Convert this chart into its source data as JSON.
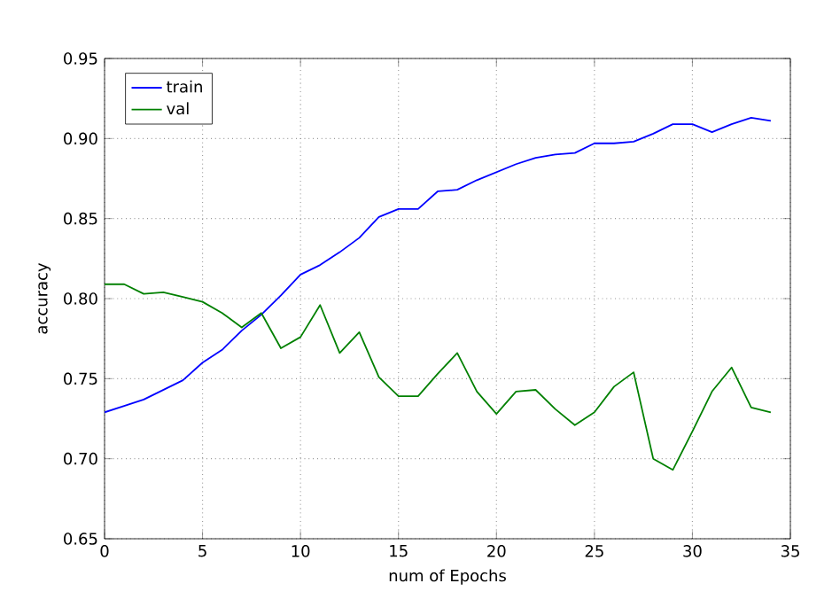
{
  "chart_data": {
    "type": "line",
    "xlabel": "num of Epochs",
    "ylabel": "accuracy",
    "x": [
      0,
      1,
      2,
      3,
      4,
      5,
      6,
      7,
      8,
      9,
      10,
      11,
      12,
      13,
      14,
      15,
      16,
      17,
      18,
      19,
      20,
      21,
      22,
      23,
      24,
      25,
      26,
      27,
      28,
      29,
      30,
      31,
      32,
      33,
      34
    ],
    "series": [
      {
        "name": "train",
        "color": "#0000ff",
        "values": [
          0.729,
          0.733,
          0.737,
          0.743,
          0.749,
          0.76,
          0.768,
          0.78,
          0.79,
          0.802,
          0.815,
          0.821,
          0.829,
          0.838,
          0.851,
          0.856,
          0.856,
          0.867,
          0.868,
          0.874,
          0.879,
          0.884,
          0.888,
          0.89,
          0.891,
          0.897,
          0.897,
          0.898,
          0.903,
          0.909,
          0.909,
          0.904,
          0.909,
          0.913,
          0.911
        ]
      },
      {
        "name": "val",
        "color": "#008000",
        "values": [
          0.809,
          0.809,
          0.803,
          0.804,
          0.801,
          0.798,
          0.791,
          0.782,
          0.791,
          0.769,
          0.776,
          0.796,
          0.766,
          0.779,
          0.751,
          0.739,
          0.739,
          0.753,
          0.766,
          0.742,
          0.728,
          0.742,
          0.743,
          0.731,
          0.721,
          0.729,
          0.745,
          0.754,
          0.7,
          0.693,
          0.717,
          0.742,
          0.757,
          0.732,
          0.729
        ]
      }
    ],
    "xlim": [
      0,
      35
    ],
    "ylim": [
      0.65,
      0.95
    ],
    "xticks": [
      0,
      5,
      10,
      15,
      20,
      25,
      30,
      35
    ],
    "yticks": [
      {
        "value": 0.65,
        "label": "0.65"
      },
      {
        "value": 0.7,
        "label": "0.70"
      },
      {
        "value": 0.75,
        "label": "0.75"
      },
      {
        "value": 0.8,
        "label": "0.80"
      },
      {
        "value": 0.85,
        "label": "0.85"
      },
      {
        "value": 0.9,
        "label": "0.90"
      },
      {
        "value": 0.95,
        "label": "0.95"
      }
    ],
    "grid": true,
    "legend": "top left",
    "marker": "none",
    "line_style": "solid"
  }
}
